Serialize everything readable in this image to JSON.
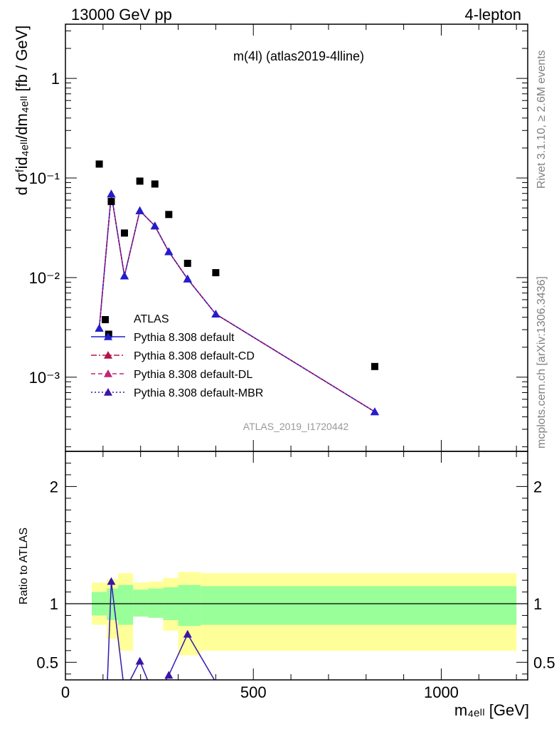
{
  "header": {
    "left": "13000 GeV pp",
    "right": "4-lepton"
  },
  "side_text": {
    "rivet": "Rivet 3.1.10, ≥ 2.6M events",
    "mcplots": "mcplots.cern.ch [arXiv:1306.3436]"
  },
  "colors": {
    "atlas": "#000000",
    "default": "#1f1fd0",
    "default_cd": "#b0154a",
    "default_dl": "#c0267a",
    "default_mbr": "#3a16a8",
    "band_inner": "#99ff99",
    "band_outer": "#ffff99"
  },
  "chart_data": [
    {
      "type": "scatter",
      "title": "m(4l) (atlas2019-4lline)",
      "ylabel": "d σᶠid₄ₑₗₗ/dm₄ₑₗₗ [fb / GeV]",
      "yscale": "log",
      "xlim": [
        0,
        1230
      ],
      "ylim": [
        0.00018,
        3.5
      ],
      "y_ticks": [
        "10⁻³",
        "10⁻²",
        "10⁻¹",
        "1"
      ],
      "watermark": "ATLAS_2019_I1720442",
      "legend_position": "center-left",
      "series": [
        {
          "name": "ATLAS",
          "style": "markers",
          "x": [
            90,
            115,
            122,
            157,
            198,
            238,
            275,
            325,
            400,
            823
          ],
          "y": [
            0.138,
            0.0027,
            0.058,
            0.028,
            0.093,
            0.087,
            0.043,
            0.0139,
            0.0112,
            0.00128
          ]
        },
        {
          "name": "Pythia 8.308 default",
          "style": "solid",
          "x": [
            90,
            122,
            157,
            198,
            238,
            275,
            325,
            400,
            823
          ],
          "y": [
            0.0031,
            0.069,
            0.0104,
            0.047,
            0.033,
            0.0182,
            0.0097,
            0.0043,
            0.00045
          ]
        },
        {
          "name": "Pythia 8.308 default-CD",
          "style": "dashdot",
          "x": [
            90,
            122,
            157,
            198,
            238,
            275,
            325,
            400,
            823
          ],
          "y": [
            0.0031,
            0.069,
            0.0104,
            0.047,
            0.033,
            0.0182,
            0.0097,
            0.0043,
            0.00045
          ]
        },
        {
          "name": "Pythia 8.308 default-DL",
          "style": "dashed",
          "x": [
            90,
            122,
            157,
            198,
            238,
            275,
            325,
            400,
            823
          ],
          "y": [
            0.0031,
            0.069,
            0.0104,
            0.047,
            0.033,
            0.0182,
            0.0097,
            0.0043,
            0.00045
          ]
        },
        {
          "name": "Pythia 8.308 default-MBR",
          "style": "dotted",
          "x": [
            90,
            122,
            157,
            198,
            238,
            275,
            325,
            400,
            823
          ],
          "y": [
            0.0031,
            0.069,
            0.0104,
            0.047,
            0.033,
            0.0182,
            0.0097,
            0.0043,
            0.00045
          ]
        }
      ]
    },
    {
      "type": "line",
      "ylabel": "Ratio to ATLAS",
      "xlabel": "m₄ₑₗₗ [GeV]",
      "xlim": [
        0,
        1230
      ],
      "ylim": [
        0.35,
        2.3
      ],
      "x_ticks": [
        0,
        500,
        1000
      ],
      "y_ticks": [
        0.5,
        1,
        2
      ],
      "reference_line": 1,
      "bands": {
        "edges": [
          70,
          110,
          140,
          180,
          220,
          260,
          300,
          360,
          1200
        ],
        "inner_low": [
          0.9,
          0.86,
          0.82,
          0.89,
          0.88,
          0.86,
          0.81,
          0.82,
          0.83
        ],
        "inner_high": [
          1.1,
          1.13,
          1.16,
          1.12,
          1.13,
          1.14,
          1.16,
          1.15,
          1.15
        ],
        "outer_low": [
          0.82,
          0.7,
          0.6,
          0.9,
          0.88,
          0.77,
          0.56,
          0.6,
          0.61
        ],
        "outer_high": [
          1.18,
          1.21,
          1.26,
          1.18,
          1.19,
          1.22,
          1.27,
          1.26,
          1.26
        ]
      },
      "series": [
        {
          "name": "Pythia 8.308 default",
          "x": [
            110,
            122,
            157,
            198,
            238,
            275,
            325,
            400
          ],
          "y": [
            0.2,
            1.19,
            0.25,
            0.51,
            0.2,
            0.39,
            0.74,
            0.33
          ]
        }
      ]
    }
  ]
}
